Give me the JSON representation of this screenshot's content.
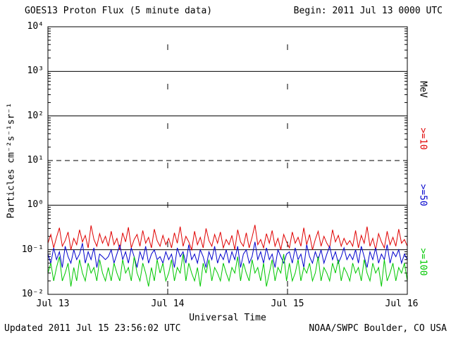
{
  "header": {
    "title": "GOES13 Proton Flux (5 minute data)",
    "begin_label": "Begin: 2011 Jul 13 0000 UTC"
  },
  "footer": {
    "updated": "Updated 2011 Jul 15 23:56:02 UTC",
    "source": "NOAA/SWPC Boulder, CO USA"
  },
  "chart_data": {
    "type": "line",
    "title": "GOES13 Proton Flux (5 minute data)",
    "xlabel": "Universal Time",
    "ylabel": "Particles cm⁻²s⁻¹sr⁻¹",
    "y_scale": "log10",
    "ylim": [
      0.01,
      10000
    ],
    "xticks": [
      "Jul 13",
      "Jul 14",
      "Jul 15",
      "Jul 16"
    ],
    "yticks": [
      "10⁴",
      "10³",
      "10²",
      "10¹",
      "10⁰",
      "10⁻¹",
      "10⁻²"
    ],
    "right_axis_labels": [
      {
        "label": "MeV",
        "color": "#000000"
      },
      {
        "label": ">=10",
        "color": "#e00000"
      },
      {
        "label": ">=50",
        "color": "#0000cc"
      },
      {
        "label": ">=100",
        "color": "#00c800"
      }
    ],
    "grid": {
      "solid_decades": [
        1000,
        100,
        1,
        0.1
      ],
      "dashed_decades": [
        10
      ],
      "day_lines": [
        "Jul 14",
        "Jul 15"
      ]
    },
    "series": [
      {
        "name": ">=10 MeV",
        "color": "#e00000",
        "approx_mean": 0.15,
        "approx_range": [
          0.08,
          0.4
        ],
        "values": [
          0.14,
          0.22,
          0.11,
          0.19,
          0.31,
          0.12,
          0.16,
          0.25,
          0.1,
          0.18,
          0.13,
          0.28,
          0.15,
          0.21,
          0.11,
          0.35,
          0.17,
          0.12,
          0.23,
          0.14,
          0.2,
          0.12,
          0.26,
          0.13,
          0.18,
          0.1,
          0.24,
          0.15,
          0.32,
          0.11,
          0.17,
          0.22,
          0.12,
          0.27,
          0.14,
          0.19,
          0.11,
          0.29,
          0.16,
          0.12,
          0.21,
          0.13,
          0.18,
          0.11,
          0.24,
          0.14,
          0.33,
          0.12,
          0.2,
          0.15,
          0.1,
          0.26,
          0.13,
          0.19,
          0.11,
          0.3,
          0.16,
          0.12,
          0.22,
          0.14,
          0.25,
          0.11,
          0.17,
          0.13,
          0.21,
          0.1,
          0.28,
          0.15,
          0.12,
          0.24,
          0.11,
          0.19,
          0.36,
          0.13,
          0.17,
          0.11,
          0.23,
          0.14,
          0.27,
          0.12,
          0.18,
          0.1,
          0.22,
          0.15,
          0.11,
          0.25,
          0.14,
          0.19,
          0.12,
          0.31,
          0.13,
          0.22,
          0.1,
          0.17,
          0.26,
          0.12,
          0.2,
          0.14,
          0.11,
          0.28,
          0.15,
          0.21,
          0.12,
          0.18,
          0.13,
          0.16,
          0.12,
          0.27,
          0.11,
          0.21,
          0.14,
          0.33,
          0.12,
          0.18,
          0.1,
          0.23,
          0.15,
          0.11,
          0.26,
          0.13,
          0.19,
          0.12,
          0.29,
          0.14,
          0.17,
          0.12
        ]
      },
      {
        "name": ">=50 MeV",
        "color": "#0000cc",
        "approx_mean": 0.08,
        "approx_range": [
          0.035,
          0.16
        ],
        "values": [
          0.08,
          0.05,
          0.11,
          0.06,
          0.09,
          0.04,
          0.12,
          0.07,
          0.05,
          0.1,
          0.06,
          0.08,
          0.14,
          0.05,
          0.09,
          0.06,
          0.11,
          0.04,
          0.08,
          0.07,
          0.06,
          0.07,
          0.1,
          0.05,
          0.08,
          0.13,
          0.06,
          0.09,
          0.05,
          0.11,
          0.07,
          0.04,
          0.09,
          0.06,
          0.12,
          0.05,
          0.08,
          0.1,
          0.06,
          0.07,
          0.05,
          0.09,
          0.06,
          0.08,
          0.04,
          0.11,
          0.07,
          0.09,
          0.05,
          0.13,
          0.06,
          0.08,
          0.05,
          0.1,
          0.07,
          0.04,
          0.09,
          0.06,
          0.12,
          0.05,
          0.08,
          0.06,
          0.1,
          0.05,
          0.09,
          0.06,
          0.12,
          0.04,
          0.08,
          0.1,
          0.05,
          0.07,
          0.15,
          0.06,
          0.09,
          0.05,
          0.11,
          0.06,
          0.08,
          0.04,
          0.1,
          0.07,
          0.05,
          0.08,
          0.09,
          0.05,
          0.11,
          0.06,
          0.08,
          0.04,
          0.13,
          0.07,
          0.05,
          0.09,
          0.06,
          0.1,
          0.05,
          0.08,
          0.12,
          0.06,
          0.09,
          0.05,
          0.07,
          0.11,
          0.06,
          0.08,
          0.06,
          0.1,
          0.05,
          0.12,
          0.07,
          0.04,
          0.09,
          0.06,
          0.11,
          0.05,
          0.08,
          0.06,
          0.13,
          0.05,
          0.09,
          0.07,
          0.1,
          0.05,
          0.08,
          0.06
        ]
      },
      {
        "name": ">=100 MeV",
        "color": "#00c800",
        "approx_mean": 0.03,
        "approx_range": [
          0.012,
          0.09
        ],
        "values": [
          0.03,
          0.05,
          0.02,
          0.04,
          0.07,
          0.02,
          0.03,
          0.05,
          0.015,
          0.04,
          0.02,
          0.06,
          0.03,
          0.02,
          0.05,
          0.03,
          0.04,
          0.02,
          0.06,
          0.03,
          0.02,
          0.04,
          0.02,
          0.05,
          0.03,
          0.02,
          0.06,
          0.03,
          0.04,
          0.02,
          0.07,
          0.03,
          0.02,
          0.05,
          0.03,
          0.015,
          0.04,
          0.02,
          0.06,
          0.03,
          0.05,
          0.02,
          0.03,
          0.06,
          0.02,
          0.04,
          0.03,
          0.08,
          0.02,
          0.05,
          0.03,
          0.02,
          0.04,
          0.015,
          0.05,
          0.03,
          0.06,
          0.02,
          0.04,
          0.03,
          0.02,
          0.05,
          0.03,
          0.02,
          0.04,
          0.03,
          0.07,
          0.02,
          0.05,
          0.03,
          0.02,
          0.06,
          0.03,
          0.04,
          0.02,
          0.05,
          0.015,
          0.03,
          0.06,
          0.02,
          0.04,
          0.03,
          0.08,
          0.02,
          0.05,
          0.02,
          0.03,
          0.06,
          0.02,
          0.04,
          0.03,
          0.05,
          0.02,
          0.03,
          0.07,
          0.02,
          0.04,
          0.03,
          0.02,
          0.05,
          0.03,
          0.06,
          0.02,
          0.04,
          0.03,
          0.02,
          0.05,
          0.03,
          0.04,
          0.02,
          0.06,
          0.03,
          0.02,
          0.05,
          0.03,
          0.04,
          0.015,
          0.06,
          0.02,
          0.03,
          0.05,
          0.02,
          0.04,
          0.03,
          0.05,
          0.02
        ]
      }
    ]
  }
}
